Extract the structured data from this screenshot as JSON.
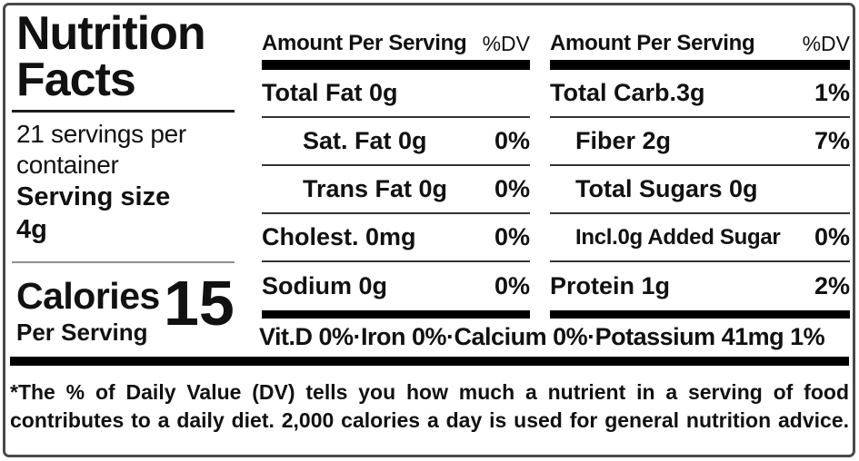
{
  "left": {
    "title_line1": "Nutrition",
    "title_line2": "Facts",
    "servings": "21 servings per container",
    "serving_size_label": "Serving size",
    "serving_size_value": "4g",
    "calories_label": "Calories",
    "calories_sublabel": "Per Serving",
    "calories_value": "15"
  },
  "columns": [
    {
      "header": "Amount Per Serving",
      "dv_header": "%DV",
      "rows": [
        {
          "name": "Total Fat 0g",
          "dv": ""
        },
        {
          "name": "Sat. Fat 0g",
          "dv": "0%"
        },
        {
          "name": "Trans Fat 0g",
          "dv": "0%"
        },
        {
          "name": "Cholest. 0mg",
          "dv": "0%"
        },
        {
          "name": "Sodium 0g",
          "dv": "0%"
        }
      ]
    },
    {
      "header": "Amount Per Serving",
      "dv_header": "%DV",
      "rows": [
        {
          "name": "Total Carb.3g",
          "dv": "1%"
        },
        {
          "name": "Fiber 2g",
          "dv": "7%"
        },
        {
          "name": "Total Sugars 0g",
          "dv": ""
        },
        {
          "name": "Incl.0g Added Sugar",
          "dv": "0%"
        },
        {
          "name": "Protein 1g",
          "dv": "2%"
        }
      ]
    }
  ],
  "micronutrients": "Vit.D 0%·Iron 0%·Calcium 0%·Potassium 41mg 1%",
  "footnote": {
    "line1": "*The % of Daily Value (DV) tells you how much a nutrient in a serving of food",
    "line2": "contributes to a daily diet. 2,000 calories a day is used for general nutrition advice."
  },
  "colors": {
    "text": "#111111",
    "bar": "#000000",
    "thin_rule": "#333333",
    "gray_rule": "#8f8f8f",
    "border": "#4a4a4a",
    "background": "#ffffff"
  }
}
